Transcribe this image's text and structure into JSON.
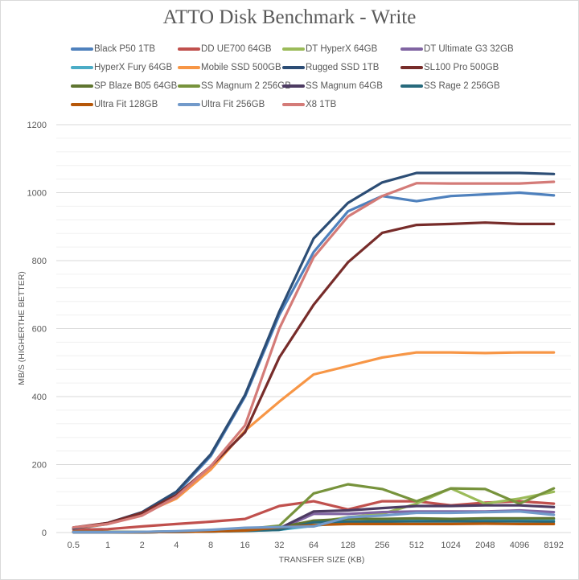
{
  "chart_data": {
    "type": "line",
    "title": "ATTO Disk Benchmark - Write",
    "xlabel": "TRANSFER SIZE (KB)",
    "ylabel": "MB/S (HIGHERTHE BETTER)",
    "ylim": [
      0,
      1200
    ],
    "yticks": [
      0,
      200,
      400,
      600,
      800,
      1000,
      1200
    ],
    "grid": true,
    "legend_position": "top",
    "categories": [
      "0.5",
      "1",
      "2",
      "4",
      "8",
      "16",
      "32",
      "64",
      "128",
      "256",
      "512",
      "1024",
      "2048",
      "4096",
      "8192"
    ],
    "series": [
      {
        "name": "Black P50 1TB",
        "color": "#4f81bd",
        "values": [
          10,
          25,
          55,
          115,
          225,
          400,
          640,
          825,
          945,
          990,
          975,
          990,
          995,
          1000,
          992
        ]
      },
      {
        "name": "DD UE700 64GB",
        "color": "#c0504d",
        "values": [
          8,
          10,
          18,
          25,
          32,
          40,
          78,
          92,
          68,
          92,
          92,
          80,
          88,
          92,
          85
        ]
      },
      {
        "name": "DT HyperX 64GB",
        "color": "#9bbb59",
        "values": [
          2,
          2,
          2,
          3,
          4,
          8,
          15,
          30,
          45,
          55,
          85,
          130,
          85,
          100,
          120
        ]
      },
      {
        "name": "DT Ultimate G3 32GB",
        "color": "#8064a2",
        "values": [
          2,
          2,
          2,
          3,
          4,
          6,
          10,
          55,
          55,
          60,
          62,
          62,
          62,
          65,
          60
        ]
      },
      {
        "name": "HyperX Fury 64GB",
        "color": "#4bacc6",
        "values": [
          1,
          1,
          1,
          2,
          3,
          5,
          8,
          20,
          30,
          35,
          38,
          38,
          38,
          38,
          38
        ]
      },
      {
        "name": "Mobile SSD 500GB",
        "color": "#f79646",
        "values": [
          12,
          25,
          55,
          100,
          185,
          300,
          385,
          465,
          490,
          515,
          530,
          530,
          528,
          530,
          530
        ]
      },
      {
        "name": "Rugged SSD 1TB",
        "color": "#2c4d75",
        "values": [
          12,
          28,
          60,
          120,
          230,
          405,
          650,
          865,
          970,
          1030,
          1058,
          1058,
          1058,
          1058,
          1055
        ]
      },
      {
        "name": "SL100 Pro 500GB",
        "color": "#772c2a",
        "values": [
          15,
          28,
          58,
          110,
          195,
          295,
          515,
          670,
          795,
          882,
          905,
          908,
          912,
          908,
          908
        ]
      },
      {
        "name": "SP Blaze B05 64GB",
        "color": "#5f7530",
        "values": [
          1,
          1,
          1,
          2,
          4,
          6,
          15,
          35,
          40,
          40,
          42,
          40,
          42,
          42,
          42
        ]
      },
      {
        "name": "SS Magnum 2 256GB",
        "color": "#77933c",
        "values": [
          2,
          2,
          2,
          3,
          5,
          10,
          20,
          115,
          142,
          128,
          92,
          130,
          128,
          85,
          130
        ]
      },
      {
        "name": "SS Magnum 64GB",
        "color": "#4d3b62",
        "values": [
          1,
          1,
          1,
          2,
          3,
          6,
          12,
          62,
          65,
          72,
          78,
          78,
          80,
          80,
          75
        ]
      },
      {
        "name": "SS Rage 2 256GB",
        "color": "#276a7c",
        "values": [
          1,
          1,
          1,
          2,
          3,
          5,
          8,
          30,
          32,
          32,
          33,
          33,
          33,
          33,
          32
        ]
      },
      {
        "name": "Ultra Fit 128GB",
        "color": "#b65708",
        "values": [
          1,
          1,
          1,
          2,
          3,
          6,
          15,
          22,
          25,
          25,
          25,
          25,
          26,
          25,
          25
        ]
      },
      {
        "name": "Ultra Fit 256GB",
        "color": "#729aca",
        "values": [
          1,
          1,
          2,
          4,
          8,
          14,
          16,
          18,
          45,
          50,
          58,
          58,
          60,
          62,
          52
        ]
      },
      {
        "name": "X8 1TB",
        "color": "#d47b78",
        "values": [
          15,
          25,
          50,
          105,
          195,
          315,
          600,
          810,
          930,
          990,
          1028,
          1027,
          1027,
          1027,
          1032
        ]
      }
    ]
  }
}
